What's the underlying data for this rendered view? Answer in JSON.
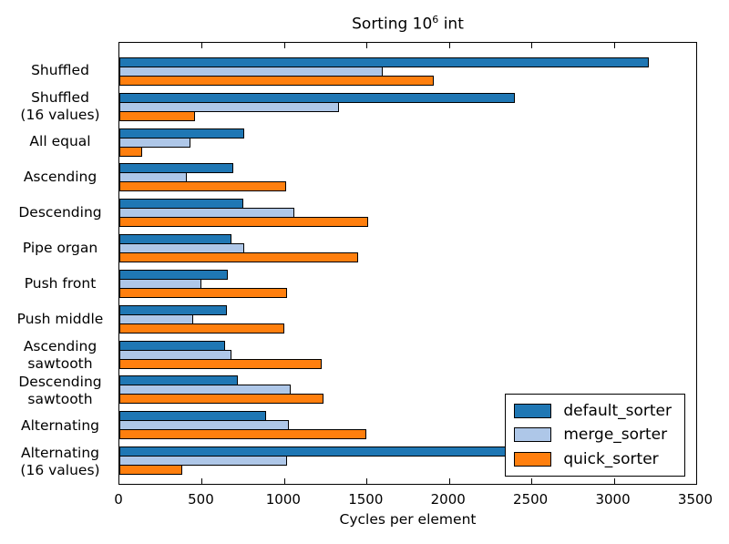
{
  "figure": {
    "background": "#ffffff",
    "frame_color": "#000000"
  },
  "chart_data": {
    "type": "bar",
    "orientation": "horizontal",
    "title": "Sorting 10^6 int",
    "title_parts": {
      "prefix": "Sorting 10",
      "sup": "6",
      "suffix": " int"
    },
    "xlabel": "Cycles per element",
    "ylabel": "",
    "xlim": [
      0,
      3500
    ],
    "xticks": [
      0,
      500,
      1000,
      1500,
      2000,
      2500,
      3000,
      3500
    ],
    "grid": false,
    "legend_position": "lower right",
    "bar_edge_color": "#000000",
    "categories": [
      [
        "Shuffled"
      ],
      [
        "Shuffled",
        "(16 values)"
      ],
      [
        "All equal"
      ],
      [
        "Ascending"
      ],
      [
        "Descending"
      ],
      [
        "Pipe organ"
      ],
      [
        "Push front"
      ],
      [
        "Push middle"
      ],
      [
        "Ascending",
        "sawtooth"
      ],
      [
        "Descending",
        "sawtooth"
      ],
      [
        "Alternating"
      ],
      [
        "Alternating",
        "(16 values)"
      ]
    ],
    "series": [
      {
        "name": "default_sorter",
        "color": "#1f77b4",
        "values": [
          3210,
          2400,
          760,
          690,
          750,
          680,
          660,
          650,
          640,
          720,
          890,
          2900
        ]
      },
      {
        "name": "merge_sorter",
        "color": "#aec7e8",
        "values": [
          1600,
          1330,
          430,
          410,
          1060,
          760,
          500,
          450,
          680,
          1040,
          1030,
          1020
        ]
      },
      {
        "name": "quick_sorter",
        "color": "#ff7f0e",
        "values": [
          1910,
          460,
          140,
          1010,
          1510,
          1450,
          1020,
          1000,
          1230,
          1240,
          1500,
          380
        ]
      }
    ]
  }
}
